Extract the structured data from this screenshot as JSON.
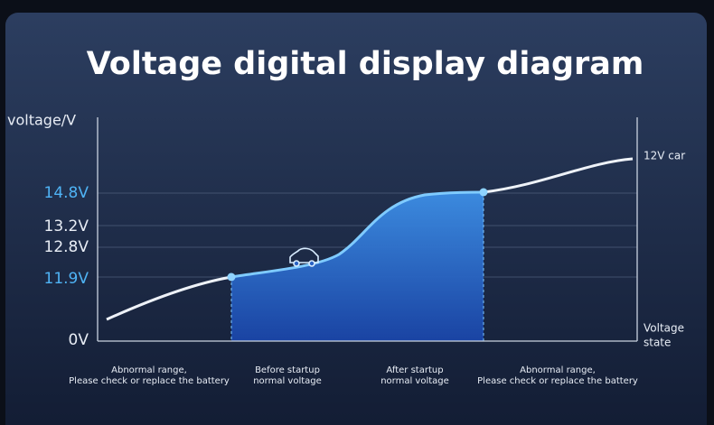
{
  "title": "Voltage digital display diagram",
  "y_axis_label": "voltage/V",
  "ticks": [
    "14.8V",
    "13.2V",
    "12.8V",
    "11.9V",
    "0V"
  ],
  "right_labels": {
    "top": "12V car",
    "bottom": [
      "Voltage",
      "state"
    ]
  },
  "regions": [
    {
      "lines": [
        "Abnormal range,",
        "Please check or replace the battery"
      ]
    },
    {
      "lines": [
        "Before startup",
        "normal voltage"
      ]
    },
    {
      "lines": [
        "After startup",
        "normal voltage"
      ]
    },
    {
      "lines": [
        "Abnormal range,",
        "Please check or replace the battery"
      ]
    }
  ]
}
